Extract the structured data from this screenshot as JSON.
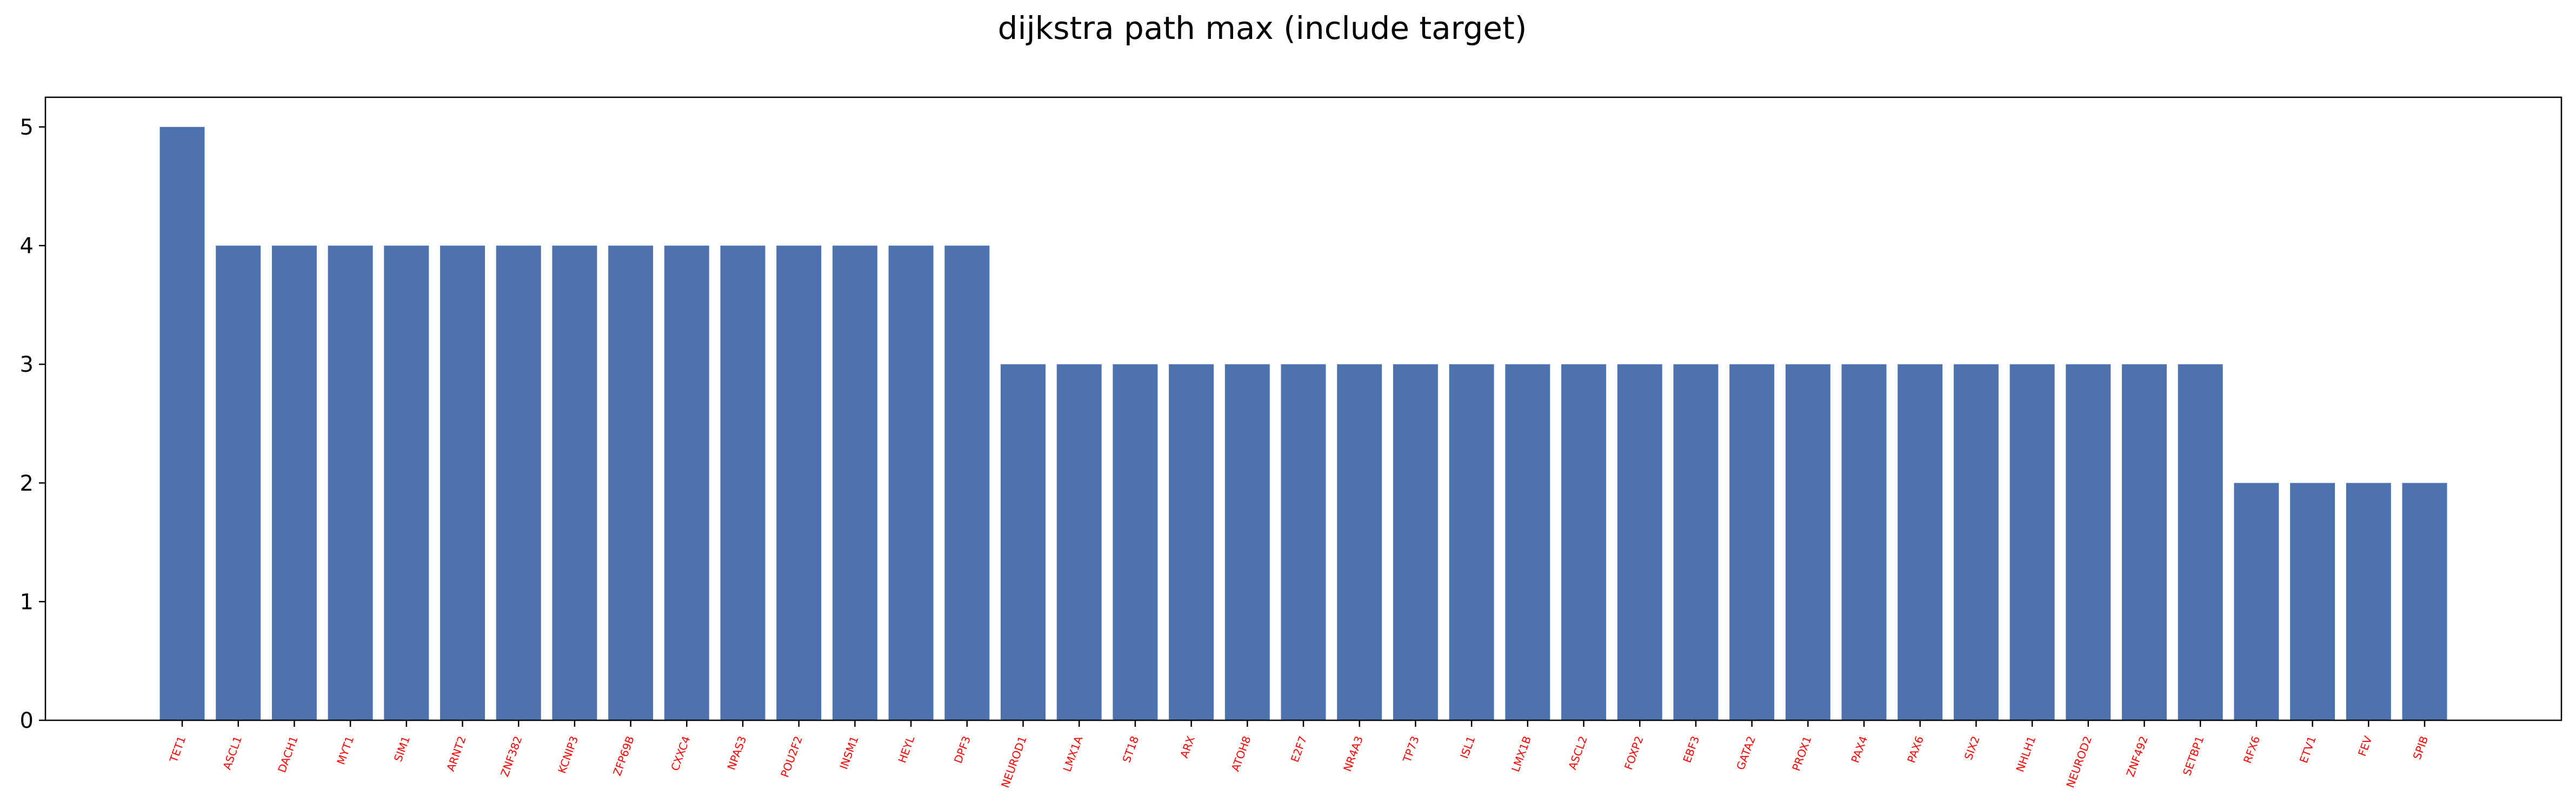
{
  "chart_data": {
    "type": "bar",
    "title": "dijkstra path max (include target)",
    "xlabel": "",
    "ylabel": "",
    "categories": [
      "TET1",
      "ASCL1",
      "DACH1",
      "MYT1",
      "SIM1",
      "ARNT2",
      "ZNF382",
      "KCNIP3",
      "ZFP69B",
      "CXXC4",
      "NPAS3",
      "POU2F2",
      "INSM1",
      "HEYL",
      "DPF3",
      "NEUROD1",
      "LMX1A",
      "ST18",
      "ARX",
      "ATOH8",
      "E2F7",
      "NR4A3",
      "TP73",
      "ISL1",
      "LMX1B",
      "ASCL2",
      "FOXP2",
      "EBF3",
      "GATA2",
      "PROX1",
      "PAX4",
      "PAX6",
      "SIX2",
      "NHLH1",
      "NEUROD2",
      "ZNF492",
      "SETBP1",
      "RFX6",
      "ETV1",
      "FEV",
      "SPIB"
    ],
    "values": [
      5,
      4,
      4,
      4,
      4,
      4,
      4,
      4,
      4,
      4,
      4,
      4,
      4,
      4,
      4,
      3,
      3,
      3,
      3,
      3,
      3,
      3,
      3,
      3,
      3,
      3,
      3,
      3,
      3,
      3,
      3,
      3,
      3,
      3,
      3,
      3,
      3,
      2,
      2,
      2,
      2
    ],
    "ylim": [
      0,
      5.25
    ],
    "yticks": [
      0,
      1,
      2,
      3,
      4,
      5
    ],
    "grid": false,
    "colors": {
      "bar": "#4c72b0",
      "tick_label": "#ff0000",
      "axis": "#000000"
    }
  }
}
